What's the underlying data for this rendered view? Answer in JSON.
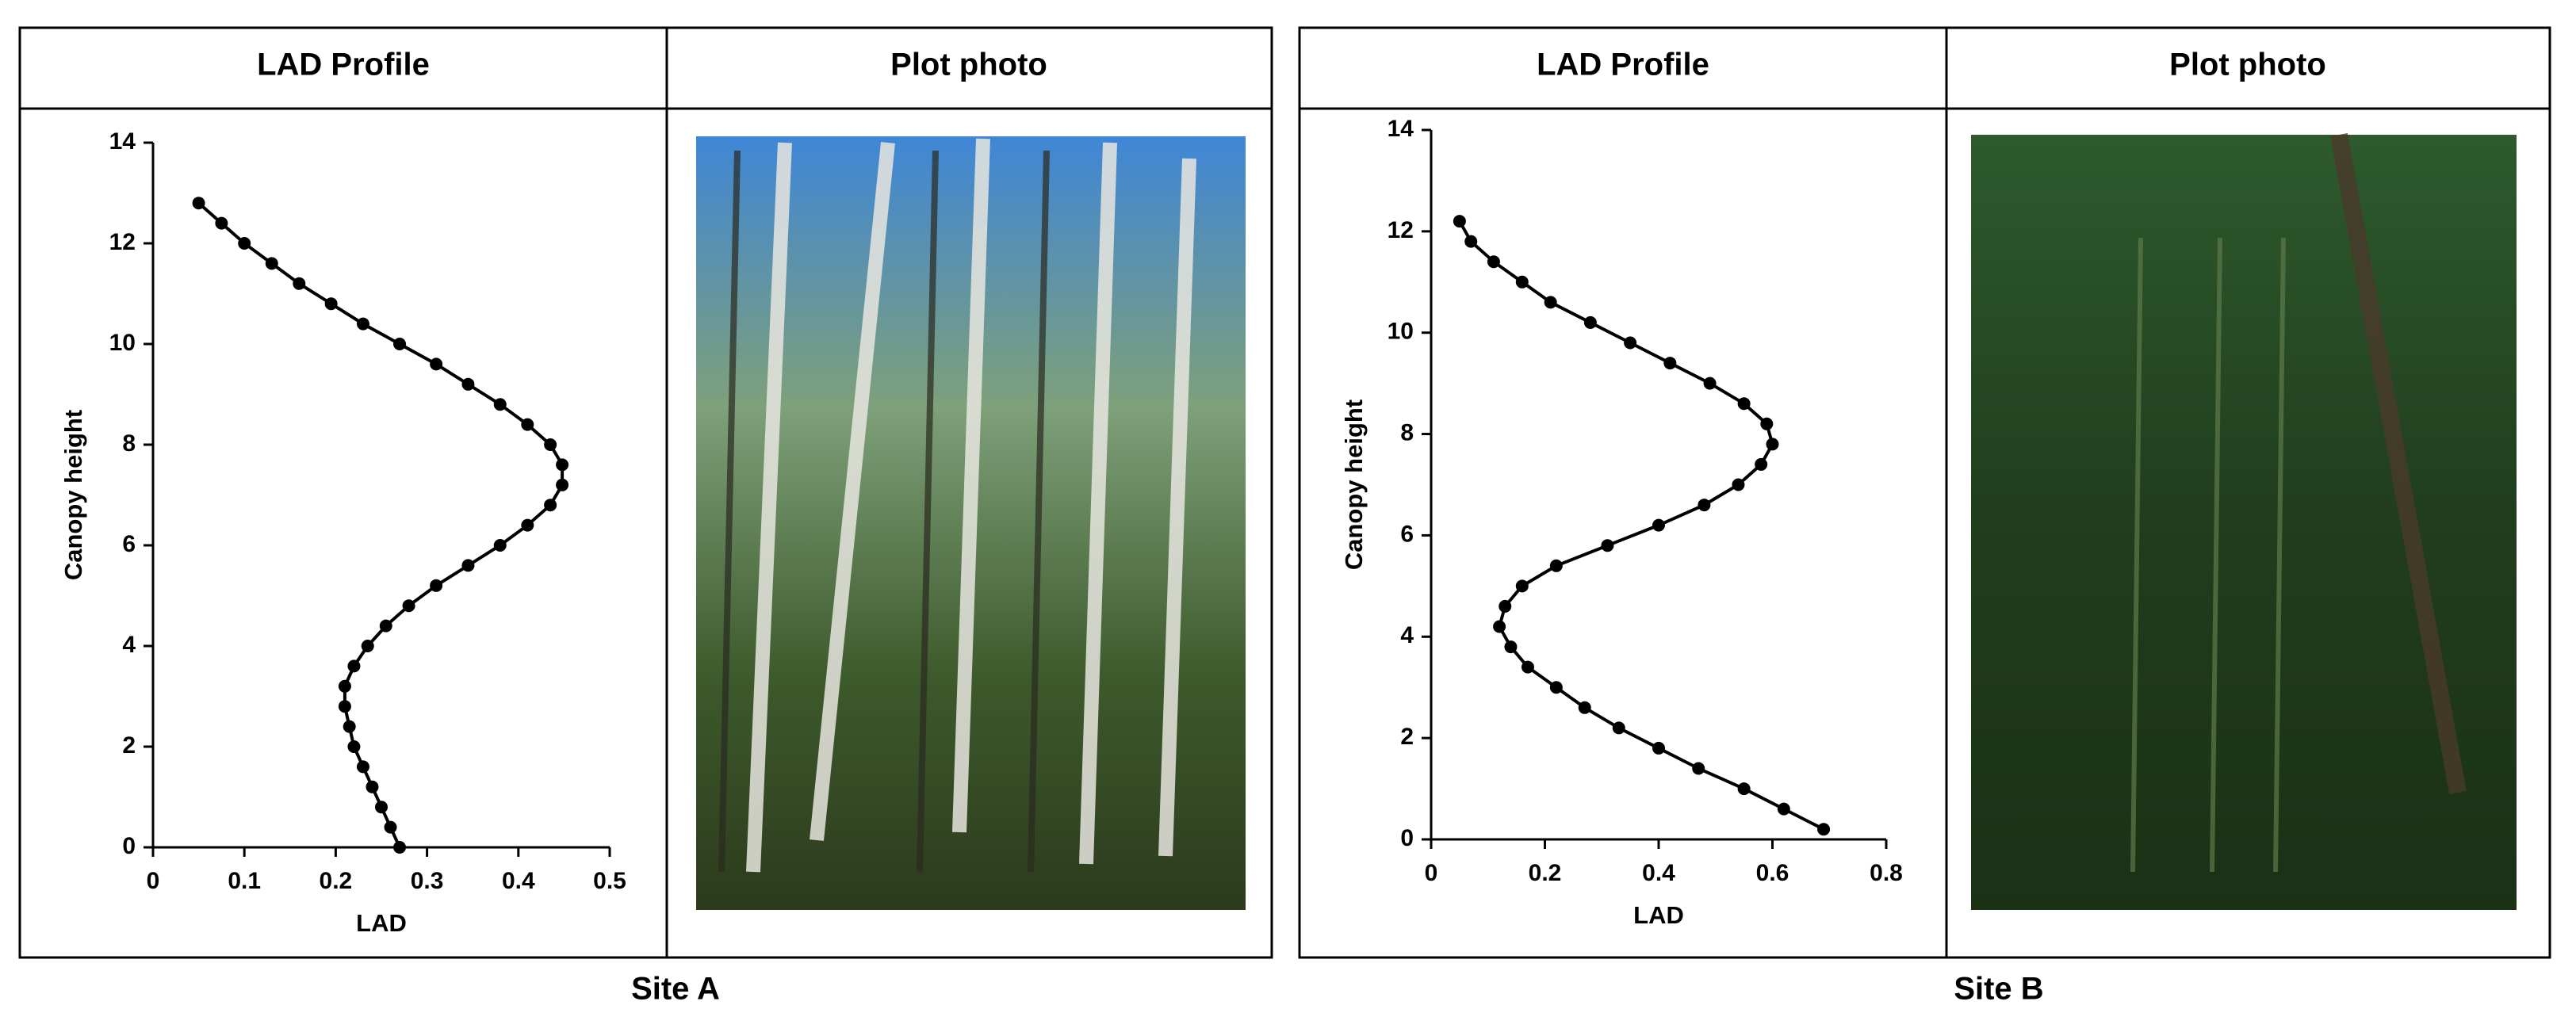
{
  "panels": [
    {
      "headers": [
        "LAD Profile",
        "Plot photo"
      ],
      "caption": "Site A"
    },
    {
      "headers": [
        "LAD Profile",
        "Plot photo"
      ],
      "caption": "Site B"
    }
  ],
  "chart_data": [
    {
      "type": "line",
      "xlabel": "LAD",
      "ylabel": "Canopy height",
      "color": "#000000",
      "x": [
        0.27,
        0.26,
        0.25,
        0.24,
        0.23,
        0.22,
        0.215,
        0.21,
        0.21,
        0.22,
        0.235,
        0.255,
        0.28,
        0.31,
        0.345,
        0.38,
        0.41,
        0.435,
        0.448,
        0.448,
        0.435,
        0.41,
        0.38,
        0.345,
        0.31,
        0.27,
        0.23,
        0.195,
        0.16,
        0.13,
        0.1,
        0.075,
        0.05
      ],
      "values": [
        0,
        0.4,
        0.8,
        1.2,
        1.6,
        2.0,
        2.4,
        2.8,
        3.2,
        3.6,
        4.0,
        4.4,
        4.8,
        5.2,
        5.6,
        6.0,
        6.4,
        6.8,
        7.2,
        7.6,
        8.0,
        8.4,
        8.8,
        9.2,
        9.6,
        10.0,
        10.4,
        10.8,
        11.2,
        11.6,
        12.0,
        12.4,
        12.8
      ],
      "xlim": [
        0,
        0.5
      ],
      "xticks": [
        0,
        0.1,
        0.2,
        0.3,
        0.4,
        0.5
      ],
      "ylim": [
        0,
        14
      ],
      "yticks": [
        0,
        2,
        4,
        6,
        8,
        10,
        12,
        14
      ]
    },
    {
      "type": "line",
      "xlabel": "LAD",
      "ylabel": "Canopy height",
      "color": "#000000",
      "x": [
        0.69,
        0.62,
        0.55,
        0.47,
        0.4,
        0.33,
        0.27,
        0.22,
        0.17,
        0.14,
        0.12,
        0.13,
        0.16,
        0.22,
        0.31,
        0.4,
        0.48,
        0.54,
        0.58,
        0.6,
        0.59,
        0.55,
        0.49,
        0.42,
        0.35,
        0.28,
        0.21,
        0.16,
        0.11,
        0.07,
        0.05
      ],
      "values": [
        0.2,
        0.6,
        1.0,
        1.4,
        1.8,
        2.2,
        2.6,
        3.0,
        3.4,
        3.8,
        4.2,
        4.6,
        5.0,
        5.4,
        5.8,
        6.2,
        6.6,
        7.0,
        7.4,
        7.8,
        8.2,
        8.6,
        9.0,
        9.4,
        9.8,
        10.2,
        10.6,
        11.0,
        11.4,
        11.8,
        12.2
      ],
      "xlim": [
        0,
        0.8
      ],
      "xticks": [
        0,
        0.2,
        0.4,
        0.6,
        0.8
      ],
      "ylim": [
        0,
        14
      ],
      "yticks": [
        0,
        2,
        4,
        6,
        8,
        10,
        12,
        14
      ]
    }
  ]
}
